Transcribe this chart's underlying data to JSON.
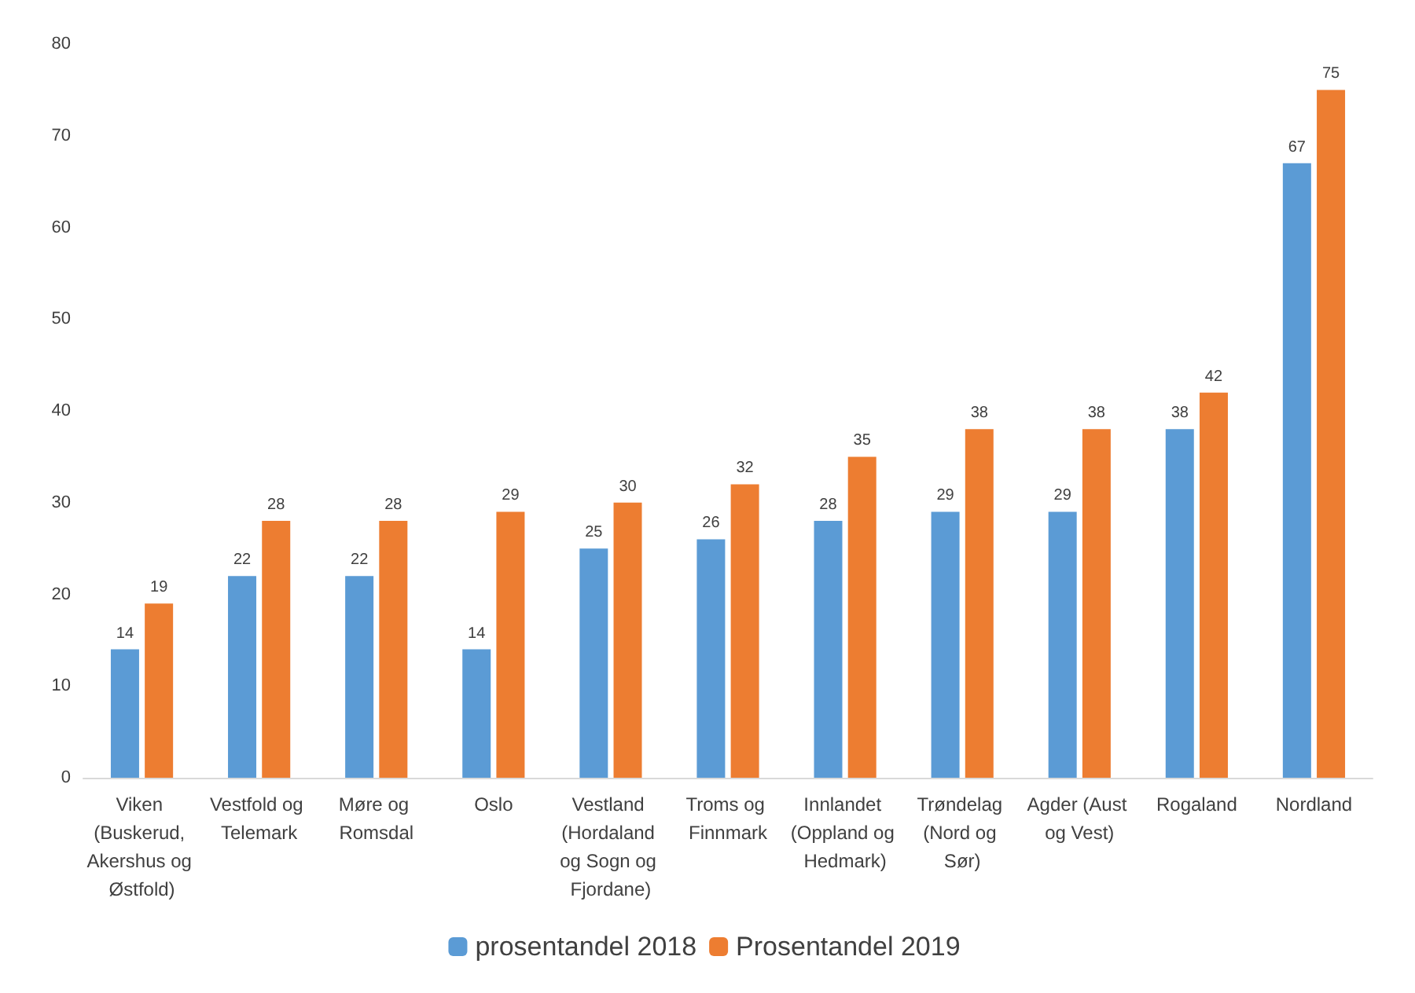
{
  "chart_data": {
    "type": "bar",
    "categories": [
      "Viken (Buskerud, Akershus og Østfold)",
      "Vestfold og Telemark",
      "Møre og Romsdal",
      "Oslo",
      "Vestland (Hordaland og Sogn og Fjordane)",
      "Troms og Finnmark",
      "Innlandet (Oppland og Hedmark)",
      "Trøndelag (Nord og Sør)",
      "Agder (Aust og Vest)",
      "Rogaland",
      "Nordland"
    ],
    "series": [
      {
        "name": "prosentandel 2018",
        "color": "#5b9bd5",
        "values": [
          14,
          22,
          22,
          14,
          25,
          26,
          28,
          29,
          29,
          38,
          67
        ]
      },
      {
        "name": "Prosentandel 2019",
        "color": "#ed7d31",
        "values": [
          19,
          28,
          28,
          29,
          30,
          32,
          35,
          38,
          38,
          42,
          75
        ]
      }
    ],
    "ylim": [
      0,
      80
    ],
    "yticks": [
      0,
      10,
      20,
      30,
      40,
      50,
      60,
      70,
      80
    ],
    "grid": false,
    "legend": "bottom",
    "data_labels": true
  }
}
